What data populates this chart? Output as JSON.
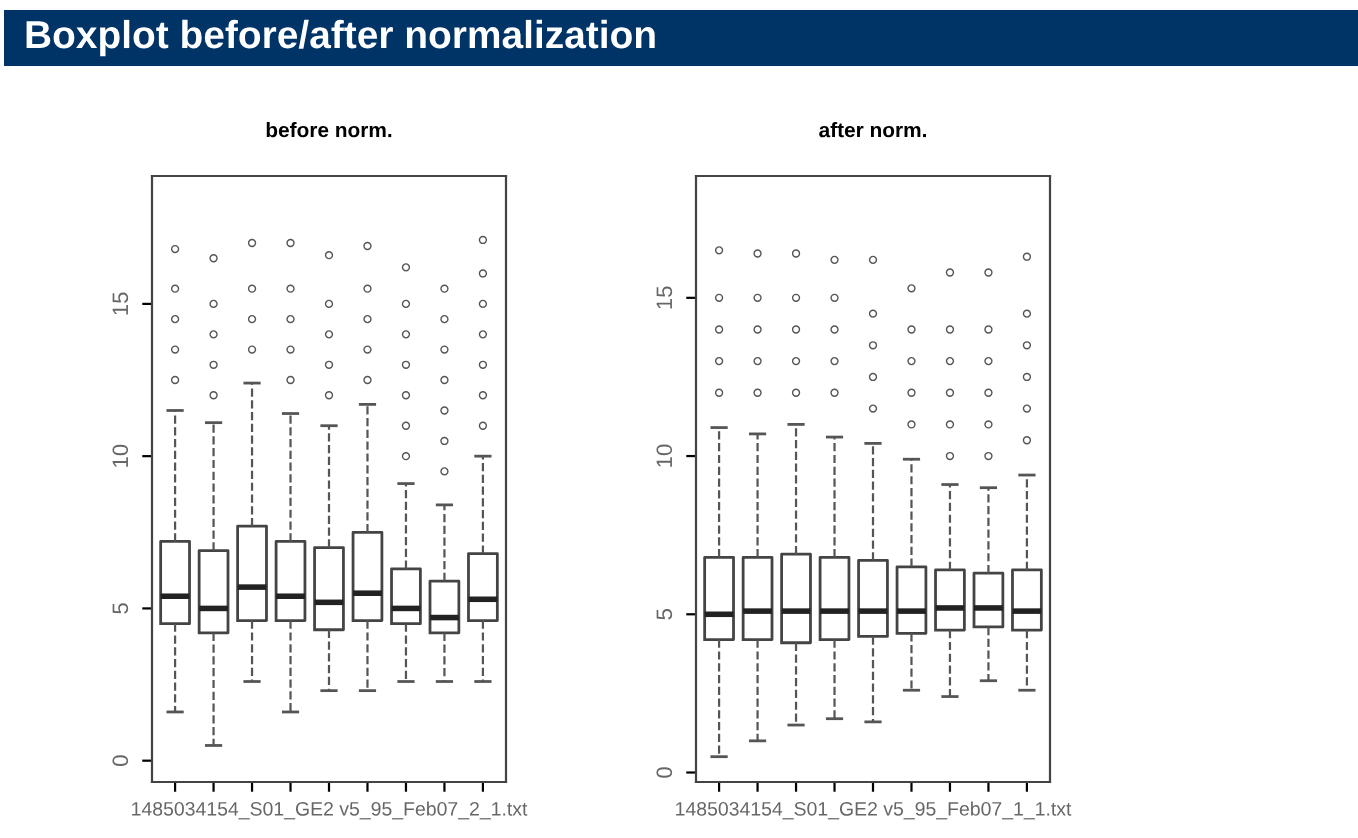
{
  "chart_data": [
    {
      "type": "other",
      "title": "Boxplot before/after normalization",
      "color": "#003366"
    },
    {
      "type": "box",
      "title": "before norm.",
      "categories": [
        null,
        null,
        null,
        null,
        "1485034154_S01_GE2 v5_95_Feb07_2_1.txt",
        null,
        null,
        null,
        null
      ],
      "ylim": [
        -0.7,
        19.2
      ],
      "yticks": [
        0,
        5,
        10,
        15
      ],
      "grid": false,
      "line_style": "dashed",
      "boxes": [
        {
          "low": 1.6,
          "q1": 4.5,
          "median": 5.4,
          "q3": 7.2,
          "high": 11.5,
          "outliers": [
            12.5,
            13.5,
            14.5,
            15.5,
            16.8
          ]
        },
        {
          "low": 0.5,
          "q1": 4.2,
          "median": 5.0,
          "q3": 6.9,
          "high": 11.1,
          "outliers": [
            12,
            13,
            14,
            15,
            16.5
          ]
        },
        {
          "low": 2.6,
          "q1": 4.6,
          "median": 5.7,
          "q3": 7.7,
          "high": 12.4,
          "outliers": [
            13.5,
            14.5,
            15.5,
            17.0
          ]
        },
        {
          "low": 1.6,
          "q1": 4.6,
          "median": 5.4,
          "q3": 7.2,
          "high": 11.4,
          "outliers": [
            12.5,
            13.5,
            14.5,
            15.5,
            17.0
          ]
        },
        {
          "low": 2.3,
          "q1": 4.3,
          "median": 5.2,
          "q3": 7.0,
          "high": 11.0,
          "outliers": [
            12,
            13,
            14,
            15,
            16.6
          ]
        },
        {
          "low": 2.3,
          "q1": 4.6,
          "median": 5.5,
          "q3": 7.5,
          "high": 11.7,
          "outliers": [
            12.5,
            13.5,
            14.5,
            15.5,
            16.9
          ]
        },
        {
          "low": 2.6,
          "q1": 4.5,
          "median": 5.0,
          "q3": 6.3,
          "high": 9.1,
          "outliers": [
            10,
            11,
            12,
            13,
            14,
            15,
            16.2
          ]
        },
        {
          "low": 2.6,
          "q1": 4.2,
          "median": 4.7,
          "q3": 5.9,
          "high": 8.4,
          "outliers": [
            9.5,
            10.5,
            11.5,
            12.5,
            13.5,
            14.5,
            15.5
          ]
        },
        {
          "low": 2.6,
          "q1": 4.6,
          "median": 5.3,
          "q3": 6.8,
          "high": 10.0,
          "outliers": [
            11,
            12,
            13,
            14,
            15,
            16,
            17.1
          ]
        }
      ]
    },
    {
      "type": "box",
      "title": "after norm.",
      "categories": [
        null,
        null,
        null,
        null,
        "1485034154_S01_GE2 v5_95_Feb07_1_1.txt",
        null,
        null,
        null,
        null
      ],
      "ylim": [
        -0.3,
        18.85
      ],
      "yticks": [
        0,
        5,
        10,
        15
      ],
      "grid": false,
      "line_style": "dashed",
      "boxes": [
        {
          "low": 0.5,
          "q1": 4.2,
          "median": 5.0,
          "q3": 6.8,
          "high": 10.9,
          "outliers": [
            12,
            13,
            14,
            15,
            16.5
          ]
        },
        {
          "low": 1.0,
          "q1": 4.2,
          "median": 5.1,
          "q3": 6.8,
          "high": 10.7,
          "outliers": [
            12,
            13,
            14,
            15,
            16.4
          ]
        },
        {
          "low": 1.5,
          "q1": 4.1,
          "median": 5.1,
          "q3": 6.9,
          "high": 11.0,
          "outliers": [
            12,
            13,
            14,
            15,
            16.4
          ]
        },
        {
          "low": 1.7,
          "q1": 4.2,
          "median": 5.1,
          "q3": 6.8,
          "high": 10.6,
          "outliers": [
            12,
            13,
            14,
            15,
            16.2
          ]
        },
        {
          "low": 1.6,
          "q1": 4.3,
          "median": 5.1,
          "q3": 6.7,
          "high": 10.4,
          "outliers": [
            11.5,
            12.5,
            13.5,
            14.5,
            16.2
          ]
        },
        {
          "low": 2.6,
          "q1": 4.4,
          "median": 5.1,
          "q3": 6.5,
          "high": 9.9,
          "outliers": [
            11,
            12,
            13,
            14,
            15.3
          ]
        },
        {
          "low": 2.4,
          "q1": 4.5,
          "median": 5.2,
          "q3": 6.4,
          "high": 9.1,
          "outliers": [
            10,
            11,
            12,
            13,
            14,
            15.8
          ]
        },
        {
          "low": 2.9,
          "q1": 4.6,
          "median": 5.2,
          "q3": 6.3,
          "high": 9.0,
          "outliers": [
            10,
            11,
            12,
            13,
            14,
            15.8
          ]
        },
        {
          "low": 2.6,
          "q1": 4.5,
          "median": 5.1,
          "q3": 6.4,
          "high": 9.4,
          "outliers": [
            10.5,
            11.5,
            12.5,
            13.5,
            14.5,
            16.3
          ]
        }
      ]
    }
  ]
}
